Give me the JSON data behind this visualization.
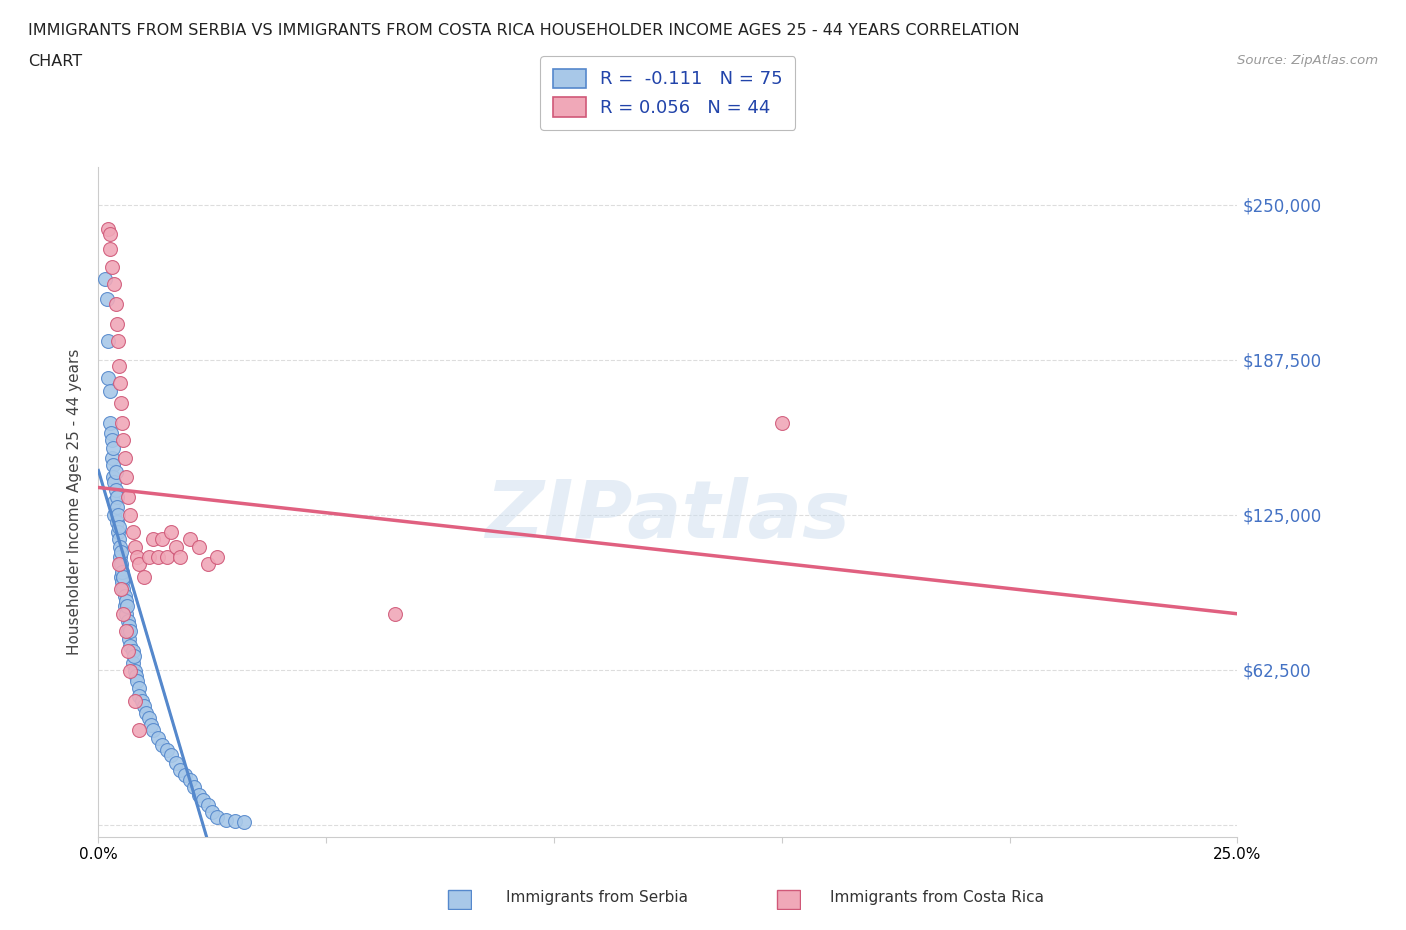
{
  "title_line1": "IMMIGRANTS FROM SERBIA VS IMMIGRANTS FROM COSTA RICA HOUSEHOLDER INCOME AGES 25 - 44 YEARS CORRELATION",
  "title_line2": "CHART",
  "source_text": "Source: ZipAtlas.com",
  "ylabel": "Householder Income Ages 25 - 44 years",
  "xlim": [
    0.0,
    0.25
  ],
  "ylim": [
    -5000,
    265000
  ],
  "yticks": [
    0,
    62500,
    125000,
    187500,
    250000
  ],
  "ytick_labels_right": [
    "",
    "$62,500",
    "$125,000",
    "$187,500",
    "$250,000"
  ],
  "xticks": [
    0.0,
    0.05,
    0.1,
    0.15,
    0.2,
    0.25
  ],
  "xtick_labels": [
    "0.0%",
    "",
    "",
    "",
    "",
    "25.0%"
  ],
  "serbia_color": "#A8C8E8",
  "costarica_color": "#F0A8B8",
  "serbia_edge_color": "#5588CC",
  "costarica_edge_color": "#D05878",
  "serbia_line_color": "#5588CC",
  "costarica_line_color": "#E06080",
  "watermark_text": "ZIPatlas",
  "legend_serbia": "R =  -0.111   N = 75",
  "legend_costarica": "R = 0.056   N = 44",
  "serbia_x": [
    0.0015,
    0.0018,
    0.002,
    0.0022,
    0.0025,
    0.0025,
    0.0028,
    0.003,
    0.003,
    0.0032,
    0.0032,
    0.0033,
    0.0035,
    0.0035,
    0.0035,
    0.0038,
    0.0038,
    0.004,
    0.004,
    0.004,
    0.0042,
    0.0042,
    0.0045,
    0.0045,
    0.0048,
    0.0048,
    0.005,
    0.005,
    0.005,
    0.0052,
    0.0052,
    0.0055,
    0.0055,
    0.0058,
    0.0058,
    0.006,
    0.006,
    0.0062,
    0.0065,
    0.0065,
    0.0068,
    0.0068,
    0.007,
    0.007,
    0.0075,
    0.0075,
    0.0078,
    0.008,
    0.0082,
    0.0085,
    0.0088,
    0.009,
    0.0095,
    0.01,
    0.0105,
    0.011,
    0.0115,
    0.012,
    0.013,
    0.014,
    0.015,
    0.016,
    0.017,
    0.018,
    0.019,
    0.02,
    0.021,
    0.022,
    0.023,
    0.024,
    0.025,
    0.026,
    0.028,
    0.03,
    0.032
  ],
  "serbia_y": [
    220000,
    212000,
    195000,
    180000,
    175000,
    162000,
    158000,
    155000,
    148000,
    145000,
    140000,
    152000,
    138000,
    130000,
    125000,
    142000,
    135000,
    132000,
    128000,
    122000,
    118000,
    125000,
    115000,
    120000,
    112000,
    108000,
    105000,
    110000,
    100000,
    98000,
    102000,
    95000,
    100000,
    92000,
    88000,
    90000,
    85000,
    88000,
    82000,
    78000,
    80000,
    75000,
    72000,
    78000,
    70000,
    65000,
    68000,
    62000,
    60000,
    58000,
    55000,
    52000,
    50000,
    48000,
    45000,
    43000,
    40000,
    38000,
    35000,
    32000,
    30000,
    28000,
    25000,
    22000,
    20000,
    18000,
    15000,
    12000,
    10000,
    8000,
    5000,
    3000,
    2000,
    1500,
    1000
  ],
  "costarica_x": [
    0.002,
    0.0025,
    0.0025,
    0.003,
    0.0035,
    0.0038,
    0.004,
    0.0042,
    0.0045,
    0.0048,
    0.005,
    0.0052,
    0.0055,
    0.0058,
    0.006,
    0.0065,
    0.007,
    0.0075,
    0.008,
    0.0085,
    0.009,
    0.01,
    0.011,
    0.012,
    0.013,
    0.014,
    0.015,
    0.016,
    0.017,
    0.018,
    0.02,
    0.022,
    0.024,
    0.026,
    0.065,
    0.15,
    0.0045,
    0.005,
    0.0055,
    0.006,
    0.0065,
    0.007,
    0.008,
    0.009
  ],
  "costarica_y": [
    240000,
    238000,
    232000,
    225000,
    218000,
    210000,
    202000,
    195000,
    185000,
    178000,
    170000,
    162000,
    155000,
    148000,
    140000,
    132000,
    125000,
    118000,
    112000,
    108000,
    105000,
    100000,
    108000,
    115000,
    108000,
    115000,
    108000,
    118000,
    112000,
    108000,
    115000,
    112000,
    105000,
    108000,
    85000,
    162000,
    105000,
    95000,
    85000,
    78000,
    70000,
    62000,
    50000,
    38000
  ],
  "background_color": "#FFFFFF",
  "grid_color": "#DDDDDD",
  "spine_color": "#CCCCCC"
}
